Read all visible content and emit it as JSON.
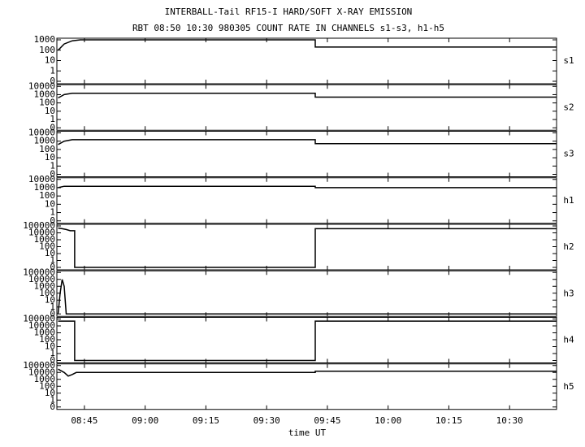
{
  "title": "INTERBALL-Tail RF15-I HARD/SOFT X-RAY EMISSION",
  "subtitle": "RBT 08:50 10:30 980305  COUNT RATE IN CHANNELS s1-s3, h1-h5",
  "x_label": "time UT",
  "xlim": [
    518.2,
    641.6
  ],
  "xticks": [
    {
      "value": 525,
      "label": "08:45"
    },
    {
      "value": 540,
      "label": "09:00"
    },
    {
      "value": 555,
      "label": "09:15"
    },
    {
      "value": 570,
      "label": "09:30"
    },
    {
      "value": 585,
      "label": "09:45"
    },
    {
      "value": 600,
      "label": "10:00"
    },
    {
      "value": 615,
      "label": "10:15"
    },
    {
      "value": 630,
      "label": "10:30"
    }
  ],
  "chart_data": [
    {
      "type": "line",
      "label": "s1",
      "log_scale": true,
      "color": "#000000",
      "x": [
        518.5,
        520,
        522,
        524,
        582,
        582,
        641.5
      ],
      "values": [
        100,
        400,
        800,
        1000,
        1000,
        200,
        200
      ],
      "ylim": [
        0,
        1000
      ],
      "yticks": [
        0,
        1,
        10,
        100,
        1000
      ]
    },
    {
      "type": "line",
      "label": "s2",
      "log_scale": true,
      "color": "#000000",
      "x": [
        518.5,
        520,
        522,
        524,
        582,
        582,
        641.5
      ],
      "values": [
        400,
        1000,
        1500,
        1500,
        1500,
        500,
        500
      ],
      "ylim": [
        0,
        10000
      ],
      "yticks": [
        0,
        1,
        10,
        100,
        1000,
        10000
      ]
    },
    {
      "type": "line",
      "label": "s3",
      "log_scale": true,
      "color": "#000000",
      "x": [
        518.5,
        520,
        522,
        524,
        582,
        582,
        641.5
      ],
      "values": [
        400,
        1000,
        1500,
        1500,
        1500,
        500,
        500
      ],
      "ylim": [
        0,
        10000
      ],
      "yticks": [
        0,
        1,
        10,
        100,
        1000,
        10000
      ]
    },
    {
      "type": "line",
      "label": "h1",
      "log_scale": true,
      "color": "#000000",
      "x": [
        518.5,
        520,
        524,
        582,
        582,
        641.5
      ],
      "values": [
        1000,
        1500,
        1500,
        1500,
        1000,
        1000
      ],
      "ylim": [
        0,
        10000
      ],
      "yticks": [
        0,
        1,
        10,
        100,
        1000,
        10000
      ]
    },
    {
      "type": "line",
      "label": "h2",
      "log_scale": true,
      "color": "#000000",
      "x": [
        518.5,
        519.5,
        520.5,
        521.5,
        522.6,
        522.6,
        582,
        582,
        641.5
      ],
      "values": [
        50000,
        40000,
        30000,
        20000,
        20000,
        0,
        0,
        40000,
        40000
      ],
      "ylim": [
        0,
        100000
      ],
      "yticks": [
        0,
        1,
        10,
        100,
        1000,
        10000,
        100000
      ]
    },
    {
      "type": "line",
      "label": "h3",
      "log_scale": true,
      "color": "#000000",
      "x": [
        518.5,
        519,
        519.5,
        520,
        520.5,
        641.5
      ],
      "values": [
        0,
        100,
        10000,
        1000,
        0,
        0
      ],
      "ylim": [
        0,
        100000
      ],
      "yticks": [
        0,
        1,
        10,
        100,
        1000,
        10000,
        100000
      ]
    },
    {
      "type": "line",
      "label": "h4",
      "log_scale": true,
      "color": "#000000",
      "x": [
        518.5,
        522.6,
        522.6,
        582,
        582,
        641.5
      ],
      "values": [
        50000,
        50000,
        0,
        0,
        50000,
        50000
      ],
      "ylim": [
        0,
        100000
      ],
      "yticks": [
        0,
        1,
        10,
        100,
        1000,
        10000,
        100000
      ]
    },
    {
      "type": "line",
      "label": "h5",
      "log_scale": true,
      "color": "#000000",
      "x": [
        518.5,
        520,
        521,
        522,
        523,
        582,
        582,
        641.5
      ],
      "values": [
        30000,
        10000,
        3000,
        5000,
        10000,
        10000,
        15000,
        15000
      ],
      "ylim": [
        0,
        100000
      ],
      "yticks": [
        0,
        1,
        10,
        100,
        1000,
        10000,
        100000
      ]
    }
  ]
}
